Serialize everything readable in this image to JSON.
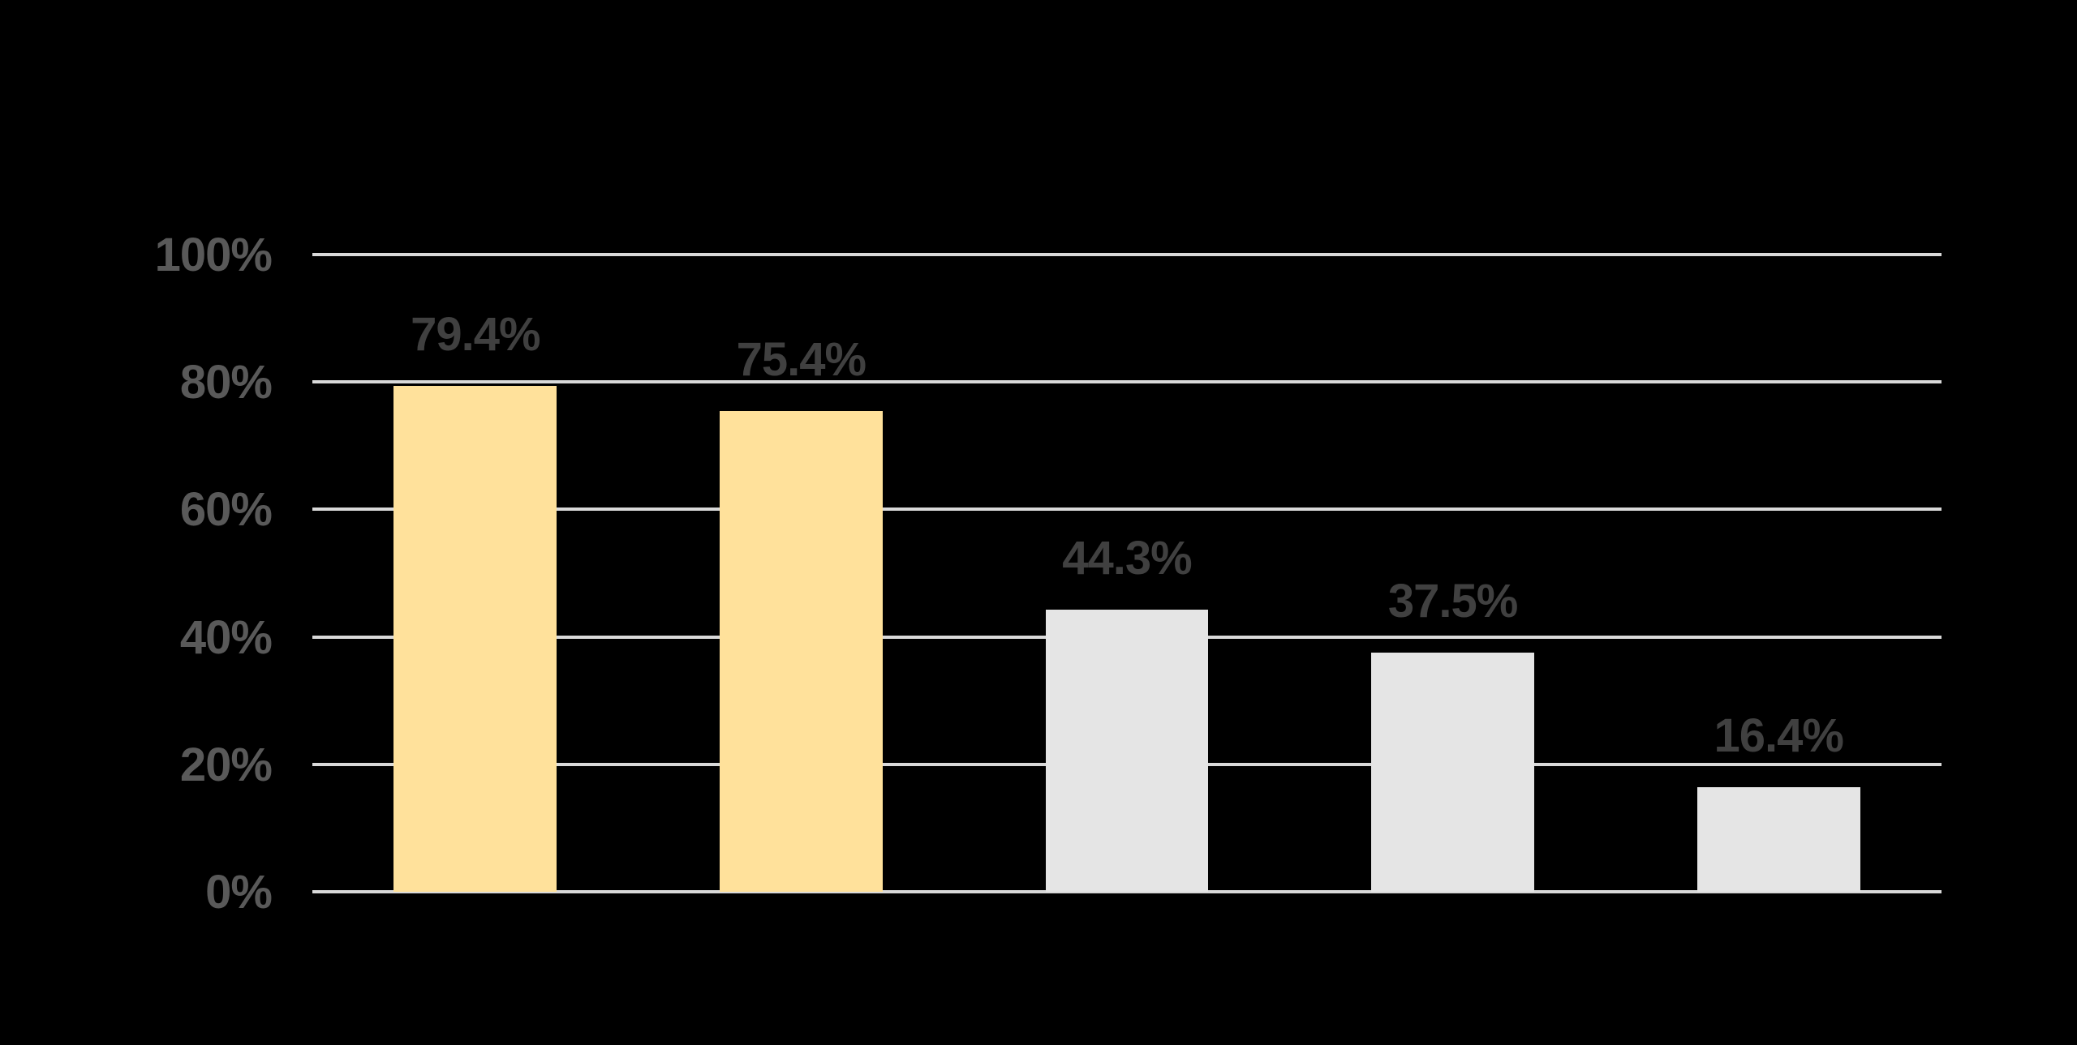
{
  "chart_data": {
    "type": "bar",
    "values": [
      79.4,
      75.4,
      44.3,
      37.5,
      16.4
    ],
    "value_labels": [
      "79.4%",
      "75.4%",
      "44.3%",
      "37.5%",
      "16.4%"
    ],
    "bar_colors": [
      "#FFE19B",
      "#FFE19B",
      "#E5E5E5",
      "#E5E5E5",
      "#E5E5E5"
    ],
    "ylim": [
      0,
      100
    ],
    "yticks": [
      0,
      20,
      40,
      60,
      80,
      100
    ],
    "ytick_labels": [
      "0%",
      "20%",
      "40%",
      "60%",
      "80%",
      "100%"
    ],
    "grid": "horizontal",
    "legend": "none",
    "xtick_labels_visible": false,
    "colors": {
      "background": "#000000",
      "gridline": "#D9D9D9",
      "axis_label": "#595959",
      "value_label": "#404040",
      "bar_yellow": "#FFE19B",
      "bar_gray": "#E5E5E5"
    }
  }
}
